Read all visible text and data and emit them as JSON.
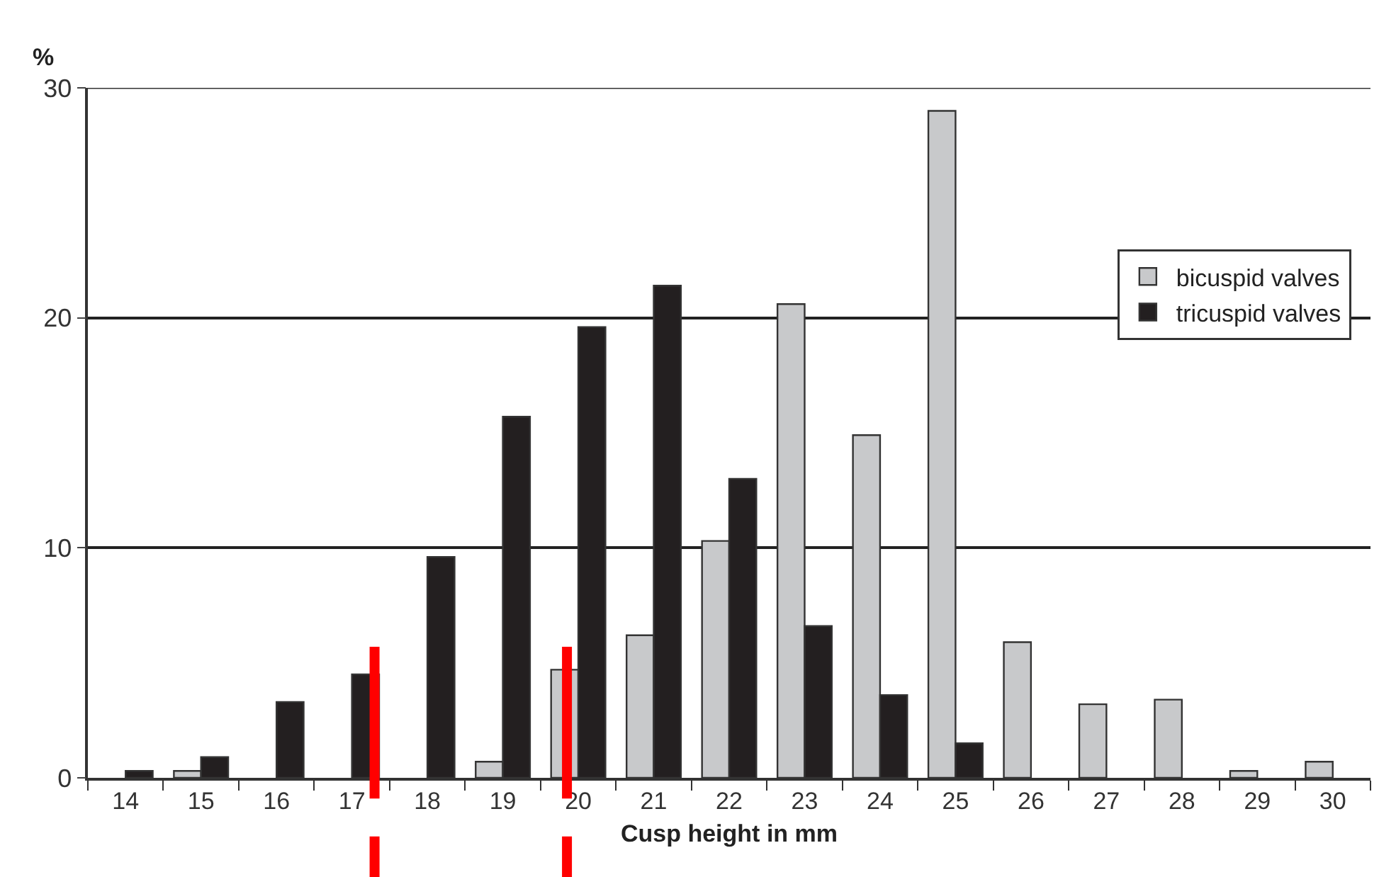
{
  "chart_data": {
    "type": "bar",
    "xlabel": "Cusp height in mm",
    "ylabel": "%",
    "x": [
      14,
      15,
      16,
      17,
      18,
      19,
      20,
      21,
      22,
      23,
      24,
      25,
      26,
      27,
      28,
      29,
      30
    ],
    "series": [
      {
        "name": "bicuspid valves",
        "color": "#c8c9cb",
        "values": [
          null,
          0.3,
          null,
          null,
          null,
          0.7,
          4.7,
          6.2,
          10.3,
          20.6,
          14.9,
          29.0,
          5.9,
          3.2,
          3.4,
          0.3,
          0.7
        ]
      },
      {
        "name": "tricuspid valves",
        "color": "#231f20",
        "values": [
          0.3,
          0.9,
          3.3,
          4.5,
          9.6,
          15.7,
          19.6,
          21.4,
          13.0,
          6.6,
          3.6,
          1.5,
          null,
          null,
          null,
          null,
          null
        ]
      }
    ],
    "xlim": [
      13.5,
      30.5
    ],
    "xticks": [
      14,
      15,
      16,
      17,
      18,
      19,
      20,
      21,
      22,
      23,
      24,
      25,
      26,
      27,
      28,
      29,
      30
    ],
    "ylim": [
      0,
      30
    ],
    "yticks": [
      0,
      10,
      20,
      30
    ],
    "grid": "y",
    "legend": "right",
    "ref_lines": [
      {
        "axis": "x",
        "value": 17.3,
        "color": "#ff0000"
      },
      {
        "axis": "x",
        "value": 19.85,
        "color": "#ff0000"
      }
    ]
  }
}
